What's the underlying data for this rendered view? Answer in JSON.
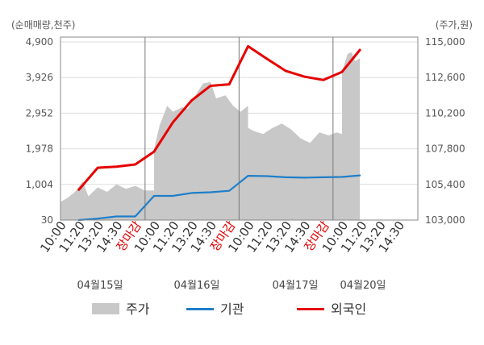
{
  "chart_data": {
    "type": "line",
    "left_axis": {
      "unit_label": "(순매매량,천주)",
      "ticks": [
        "4,900",
        "3,926",
        "2,952",
        "1,978",
        "1,004",
        "30"
      ],
      "range": [
        30,
        4900
      ]
    },
    "right_axis": {
      "unit_label": "(주가,원)",
      "ticks": [
        "115,000",
        "112,600",
        "110,200",
        "107,800",
        "105,400",
        "103,000"
      ],
      "range": [
        103000,
        115000
      ]
    },
    "x_tick_labels": [
      "10:00",
      "11:20",
      "13:20",
      "14:30",
      "장마감",
      "10:00",
      "11:20",
      "13:20",
      "14:30",
      "장마감",
      "10:00",
      "11:20",
      "13:20",
      "14:30",
      "장마감",
      "10:00",
      "11:20",
      "13:20",
      "14:30"
    ],
    "close_label": "장마감",
    "dates": [
      "04월15일",
      "04월16일",
      "04월17일",
      "04월20일"
    ],
    "grid": true,
    "legend_position": "bottom",
    "series": [
      {
        "name": "주가",
        "kind": "area",
        "axis": "right",
        "color": "#c8c8c8",
        "values": [
          [
            0,
            104200
          ],
          [
            0.4,
            104500
          ],
          [
            0.8,
            104900
          ],
          [
            1.2,
            105600
          ],
          [
            1.5,
            104600
          ],
          [
            2.0,
            105200
          ],
          [
            2.5,
            104900
          ],
          [
            3.0,
            105400
          ],
          [
            3.5,
            105100
          ],
          [
            4.0,
            105300
          ],
          [
            4.5,
            105000
          ],
          [
            5.0,
            105000
          ],
          [
            5.0,
            107800
          ],
          [
            5.3,
            109400
          ],
          [
            5.7,
            110700
          ],
          [
            6.0,
            110300
          ],
          [
            6.5,
            110600
          ],
          [
            6.8,
            110500
          ],
          [
            7.3,
            111600
          ],
          [
            7.6,
            112200
          ],
          [
            8.0,
            112300
          ],
          [
            8.3,
            111200
          ],
          [
            8.8,
            111400
          ],
          [
            9.2,
            110700
          ],
          [
            9.6,
            110300
          ],
          [
            10.0,
            110700
          ],
          [
            10.0,
            109200
          ],
          [
            10.3,
            109000
          ],
          [
            10.8,
            108800
          ],
          [
            11.3,
            109200
          ],
          [
            11.8,
            109500
          ],
          [
            12.3,
            109100
          ],
          [
            12.8,
            108500
          ],
          [
            13.3,
            108200
          ],
          [
            13.8,
            108900
          ],
          [
            14.3,
            108700
          ],
          [
            14.7,
            108900
          ],
          [
            15.0,
            108800
          ],
          [
            15.0,
            113000
          ],
          [
            15.3,
            114200
          ],
          [
            15.5,
            114300
          ],
          [
            15.7,
            113700
          ],
          [
            15.95,
            113900
          ]
        ]
      },
      {
        "name": "기관",
        "kind": "line",
        "axis": "left",
        "color": "#1f7ec9",
        "values": [
          [
            1,
            30
          ],
          [
            2,
            70
          ],
          [
            3,
            130
          ],
          [
            4,
            130
          ],
          [
            5,
            690
          ],
          [
            6,
            690
          ],
          [
            7,
            770
          ],
          [
            8,
            790
          ],
          [
            9,
            830
          ],
          [
            10,
            1240
          ],
          [
            11,
            1230
          ],
          [
            12,
            1200
          ],
          [
            13,
            1190
          ],
          [
            14,
            1200
          ],
          [
            15,
            1210
          ],
          [
            15.95,
            1250
          ]
        ]
      },
      {
        "name": "외국인",
        "kind": "line",
        "axis": "left",
        "color": "#e60000",
        "values": [
          [
            1,
            860
          ],
          [
            2,
            1460
          ],
          [
            3,
            1490
          ],
          [
            4,
            1550
          ],
          [
            5,
            1900
          ],
          [
            6,
            2700
          ],
          [
            7,
            3300
          ],
          [
            8,
            3700
          ],
          [
            9,
            3740
          ],
          [
            10,
            4780
          ],
          [
            11,
            4440
          ],
          [
            12,
            4110
          ],
          [
            13,
            3950
          ],
          [
            14,
            3860
          ],
          [
            15,
            4080
          ],
          [
            15.95,
            4680
          ]
        ]
      }
    ]
  }
}
